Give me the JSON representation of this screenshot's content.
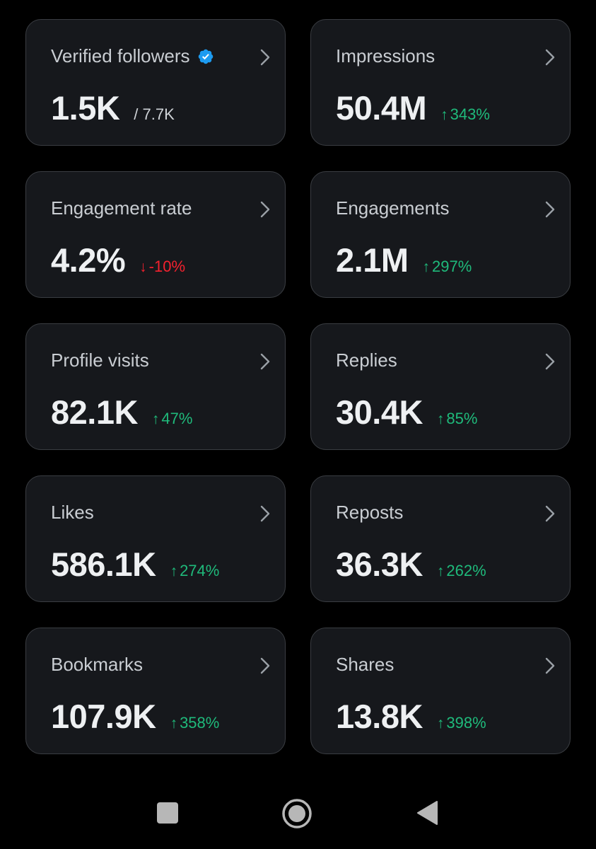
{
  "colors": {
    "background": "#000000",
    "card_bg": "#16181c",
    "card_border": "#3a3d42",
    "positive": "#1fba7b",
    "negative": "#f4212e",
    "verified": "#1d9bf0"
  },
  "cards": [
    {
      "title": "Verified followers",
      "value": "1.5K",
      "secondary": "/ 7.7K",
      "icon": "verified-badge-icon"
    },
    {
      "title": "Impressions",
      "value": "50.4M",
      "delta": "343%",
      "direction": "up"
    },
    {
      "title": "Engagement rate",
      "value": "4.2%",
      "delta": "-10%",
      "direction": "down"
    },
    {
      "title": "Engagements",
      "value": "2.1M",
      "delta": "297%",
      "direction": "up"
    },
    {
      "title": "Profile visits",
      "value": "82.1K",
      "delta": "47%",
      "direction": "up"
    },
    {
      "title": "Replies",
      "value": "30.4K",
      "delta": "85%",
      "direction": "up"
    },
    {
      "title": "Likes",
      "value": "586.1K",
      "delta": "274%",
      "direction": "up"
    },
    {
      "title": "Reposts",
      "value": "36.3K",
      "delta": "262%",
      "direction": "up"
    },
    {
      "title": "Bookmarks",
      "value": "107.9K",
      "delta": "358%",
      "direction": "up"
    },
    {
      "title": "Shares",
      "value": "13.8K",
      "delta": "398%",
      "direction": "up"
    }
  ],
  "arrows": {
    "up": "↑",
    "down": "↓"
  },
  "navbar": {
    "buttons": [
      "recents-square-icon",
      "home-circle-icon",
      "back-triangle-icon"
    ]
  }
}
